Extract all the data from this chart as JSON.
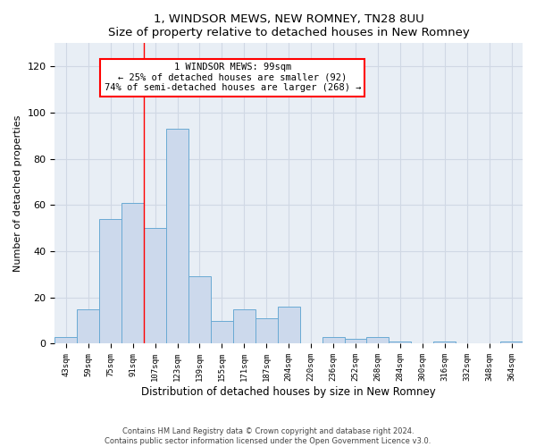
{
  "title1": "1, WINDSOR MEWS, NEW ROMNEY, TN28 8UU",
  "title2": "Size of property relative to detached houses in New Romney",
  "xlabel": "Distribution of detached houses by size in New Romney",
  "ylabel": "Number of detached properties",
  "footer1": "Contains HM Land Registry data © Crown copyright and database right 2024.",
  "footer2": "Contains public sector information licensed under the Open Government Licence v3.0.",
  "categories": [
    "43sqm",
    "59sqm",
    "75sqm",
    "91sqm",
    "107sqm",
    "123sqm",
    "139sqm",
    "155sqm",
    "171sqm",
    "187sqm",
    "204sqm",
    "220sqm",
    "236sqm",
    "252sqm",
    "268sqm",
    "284sqm",
    "300sqm",
    "316sqm",
    "332sqm",
    "348sqm",
    "364sqm"
  ],
  "values": [
    3,
    15,
    54,
    61,
    50,
    93,
    29,
    10,
    15,
    11,
    16,
    0,
    3,
    2,
    3,
    1,
    0,
    1,
    0,
    0,
    1
  ],
  "bar_color": "#ccd9ec",
  "bar_edge_color": "#6aaad4",
  "grid_color": "#d0d8e4",
  "background_color": "#e8eef5",
  "annotation_text": "1 WINDSOR MEWS: 99sqm\n← 25% of detached houses are smaller (92)\n74% of semi-detached houses are larger (268) →",
  "red_line_x": 3.5,
  "ylim": [
    0,
    130
  ],
  "yticks": [
    0,
    20,
    40,
    60,
    80,
    100,
    120
  ]
}
